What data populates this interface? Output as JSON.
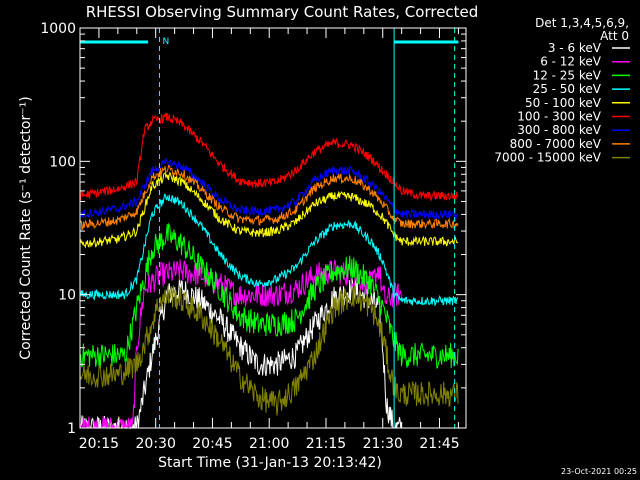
{
  "chart_data": {
    "type": "line",
    "title": "RHESSI Observing Summary Count Rates, Corrected",
    "xlabel": "Start Time (31-Jan-13 20:13:42)",
    "ylabel": "Corrected Count Rate (s⁻¹ detector⁻¹)",
    "y_scale": "log",
    "ylim": [
      1,
      1000
    ],
    "xlim": [
      "20:10",
      "21:52"
    ],
    "x_ticks": [
      "20:15",
      "20:30",
      "20:45",
      "21:00",
      "21:15",
      "21:30",
      "21:45"
    ],
    "y_ticks": [
      "1",
      "10",
      "100",
      "1000"
    ],
    "legend_header": [
      "Det 1,3,4,5,6,9,",
      "Att 0"
    ],
    "legend_position": "right",
    "timestamp": "23-Oct-2021 00:25",
    "flag_bars": {
      "color": "#00ffff",
      "label": "N",
      "segments": [
        [
          "20:10",
          "20:28"
        ],
        [
          "21:33",
          "21:50"
        ]
      ],
      "dashed_lines": [
        "20:31",
        "21:49"
      ],
      "vertical_solid_line": "21:33"
    },
    "series": [
      {
        "name": "3 - 6 keV",
        "color": "#ffffff",
        "x": [
          "20:10",
          "20:25",
          "20:29",
          "20:33",
          "20:37",
          "20:42",
          "20:47",
          "20:52",
          "20:57",
          "21:02",
          "21:07",
          "21:12",
          "21:17",
          "21:22",
          "21:27",
          "21:29",
          "21:30",
          "21:31",
          "21:33",
          "21:35"
        ],
        "y": [
          1,
          1,
          3.5,
          10,
          11,
          9,
          6.5,
          4.2,
          3,
          3,
          3.5,
          6,
          9.5,
          11,
          9,
          8,
          4,
          1.5,
          1,
          1
        ]
      },
      {
        "name": "6 - 12 keV",
        "color": "#ff00ff",
        "x": [
          "20:10",
          "20:24",
          "20:25",
          "20:27",
          "20:31",
          "20:37",
          "20:42",
          "20:47",
          "20:52",
          "20:57",
          "21:02",
          "21:07",
          "21:12",
          "21:17",
          "21:22",
          "21:27",
          "21:29",
          "21:30",
          "21:31",
          "21:33",
          "21:35"
        ],
        "y": [
          1,
          1,
          4,
          11,
          14,
          15,
          14,
          12,
          10,
          10,
          10,
          11,
          14,
          15,
          14,
          12,
          16,
          10,
          9,
          10,
          10
        ]
      },
      {
        "name": "12 - 25 keV",
        "color": "#00ff00",
        "x": [
          "20:10",
          "20:22",
          "20:25",
          "20:29",
          "20:33",
          "20:37",
          "20:42",
          "20:47",
          "20:52",
          "20:57",
          "21:02",
          "21:07",
          "21:12",
          "21:17",
          "21:22",
          "21:27",
          "21:30",
          "21:33",
          "21:35",
          "21:40",
          "21:50"
        ],
        "y": [
          3.5,
          3.5,
          8,
          22,
          28,
          24,
          16,
          11,
          7,
          6,
          6,
          6.5,
          11,
          15,
          16,
          12,
          8,
          4.5,
          3.5,
          3.5,
          3.5
        ]
      },
      {
        "name": "25 - 50 keV",
        "color": "#00ffff",
        "x": [
          "20:10",
          "20:22",
          "20:25",
          "20:29",
          "20:33",
          "20:37",
          "20:42",
          "20:47",
          "20:52",
          "20:57",
          "21:02",
          "21:07",
          "21:12",
          "21:17",
          "21:22",
          "21:27",
          "21:30",
          "21:33",
          "21:35",
          "21:40",
          "21:50"
        ],
        "y": [
          10,
          10,
          13,
          40,
          55,
          48,
          33,
          20,
          14,
          12,
          13,
          16,
          25,
          33,
          34,
          25,
          18,
          10,
          9,
          9,
          9
        ]
      },
      {
        "name": "50 - 100 keV",
        "color": "#ffff00",
        "x": [
          "20:10",
          "20:20",
          "20:25",
          "20:29",
          "20:33",
          "20:37",
          "20:42",
          "20:47",
          "20:52",
          "20:57",
          "21:02",
          "21:07",
          "21:12",
          "21:17",
          "21:22",
          "21:27",
          "21:30",
          "21:33",
          "21:35",
          "21:40",
          "21:50"
        ],
        "y": [
          24,
          26,
          30,
          65,
          78,
          70,
          52,
          37,
          30,
          29,
          30,
          35,
          48,
          55,
          54,
          46,
          38,
          28,
          25,
          25,
          25
        ]
      },
      {
        "name": "100 - 300 keV",
        "color": "#ff0000",
        "x": [
          "20:10",
          "20:20",
          "20:25",
          "20:27",
          "20:29",
          "20:33",
          "20:37",
          "20:42",
          "20:47",
          "20:52",
          "20:57",
          "21:02",
          "21:07",
          "21:12",
          "21:17",
          "21:22",
          "21:27",
          "21:30",
          "21:33",
          "21:35",
          "21:40",
          "21:50"
        ],
        "y": [
          55,
          62,
          70,
          170,
          200,
          215,
          190,
          140,
          95,
          72,
          68,
          70,
          85,
          118,
          138,
          132,
          105,
          85,
          70,
          60,
          55,
          55
        ]
      },
      {
        "name": "300 - 800 keV",
        "color": "#0000ff",
        "x": [
          "20:10",
          "20:20",
          "20:25",
          "20:29",
          "20:33",
          "20:37",
          "20:42",
          "20:47",
          "20:52",
          "20:57",
          "21:02",
          "21:07",
          "21:12",
          "21:17",
          "21:22",
          "21:27",
          "21:30",
          "21:33",
          "21:35",
          "21:40",
          "21:50"
        ],
        "y": [
          40,
          44,
          50,
          85,
          98,
          92,
          70,
          52,
          43,
          42,
          43,
          50,
          72,
          86,
          84,
          68,
          56,
          44,
          40,
          40,
          40
        ]
      },
      {
        "name": "800 - 7000 keV",
        "color": "#ff8000",
        "x": [
          "20:10",
          "20:20",
          "20:25",
          "20:29",
          "20:33",
          "20:37",
          "20:42",
          "20:47",
          "20:52",
          "20:57",
          "21:02",
          "21:07",
          "21:12",
          "21:17",
          "21:22",
          "21:27",
          "21:30",
          "21:33",
          "21:35",
          "21:40",
          "21:50"
        ],
        "y": [
          33,
          36,
          42,
          76,
          88,
          82,
          62,
          45,
          37,
          36,
          37,
          43,
          63,
          75,
          74,
          60,
          48,
          37,
          34,
          34,
          34
        ]
      },
      {
        "name": "7000 - 15000 keV",
        "color": "#808000",
        "x": [
          "20:10",
          "20:20",
          "20:25",
          "20:28",
          "20:31",
          "20:34",
          "20:37",
          "20:42",
          "20:47",
          "20:52",
          "20:57",
          "21:02",
          "21:07",
          "21:12",
          "21:17",
          "21:22",
          "21:27",
          "21:30",
          "21:32",
          "21:34",
          "21:40",
          "21:50"
        ],
        "y": [
          2.5,
          2.5,
          3,
          5,
          9,
          10,
          9,
          7,
          4.5,
          2.5,
          1.7,
          1.5,
          2,
          3.5,
          8,
          10,
          8,
          5,
          2.5,
          1.8,
          1.8,
          1.8
        ]
      }
    ]
  }
}
